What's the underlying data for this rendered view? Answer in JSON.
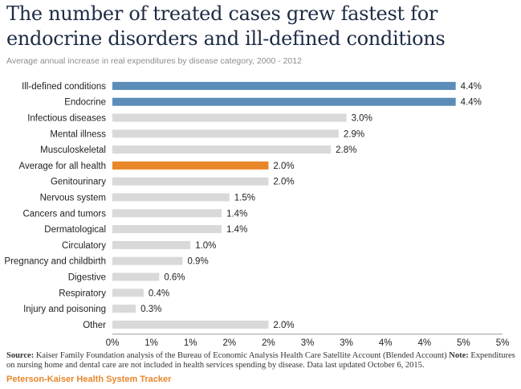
{
  "header": {
    "title": "The number of treated cases grew fastest for endocrine disorders and ill-defined conditions",
    "subtitle": "Average annual increase in real expenditures by disease category, 2000 - 2012"
  },
  "footer": {
    "source_label": "Source:",
    "source_text": "Kaiser Family Foundation analysis of the Bureau of Economic Analysis Health Care Satellite Account (Blended Account)",
    "note_label": "Note:",
    "note_text": "Expenditures on nursing home and dental care are not included in health services spending by disease. Data last updated October 6, 2015.",
    "brand": "Peterson-Kaiser Health System Tracker"
  },
  "colors": {
    "highlight_blue": "#5b8db8",
    "highlight_orange": "#e8862a",
    "default_gray": "#d9d9d9"
  },
  "chart_data": {
    "type": "bar",
    "orientation": "horizontal",
    "categories": [
      "Ill-defined conditions",
      "Endocrine",
      "Infectious diseases",
      "Mental illness",
      "Musculoskeletal",
      "Average for all health",
      "Genitourinary",
      "Nervous system",
      "Cancers and tumors",
      "Dermatological",
      "Circulatory",
      "Pregnancy and childbirth",
      "Digestive",
      "Respiratory",
      "Injury and poisoning",
      "Other"
    ],
    "values": [
      4.4,
      4.4,
      3.0,
      2.9,
      2.8,
      2.0,
      2.0,
      1.5,
      1.4,
      1.4,
      1.0,
      0.9,
      0.6,
      0.4,
      0.3,
      2.0
    ],
    "value_labels": [
      "4.4%",
      "4.4%",
      "3.0%",
      "2.9%",
      "2.8%",
      "2.0%",
      "2.0%",
      "1.5%",
      "1.4%",
      "1.4%",
      "1.0%",
      "0.9%",
      "0.6%",
      "0.4%",
      "0.3%",
      "2.0%"
    ],
    "bar_colors": [
      "#5b8db8",
      "#5b8db8",
      "#d9d9d9",
      "#d9d9d9",
      "#d9d9d9",
      "#e8862a",
      "#d9d9d9",
      "#d9d9d9",
      "#d9d9d9",
      "#d9d9d9",
      "#d9d9d9",
      "#d9d9d9",
      "#d9d9d9",
      "#d9d9d9",
      "#d9d9d9",
      "#d9d9d9"
    ],
    "tick_labels": [
      "0%",
      "1%",
      "1%",
      "2%",
      "2%",
      "3%",
      "3%",
      "4%",
      "4%",
      "5%",
      "5%"
    ],
    "xlim": [
      0,
      5
    ],
    "grid": false,
    "legend": "none"
  }
}
